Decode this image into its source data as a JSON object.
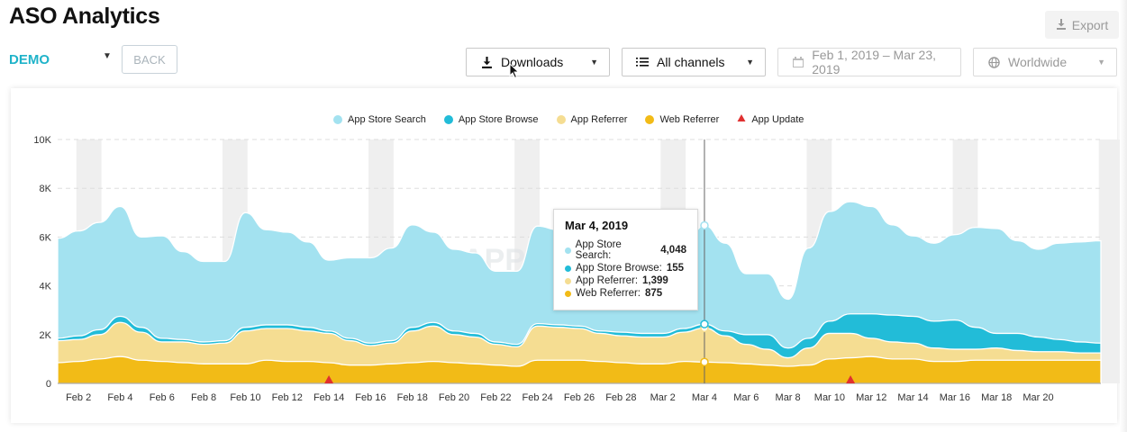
{
  "header": {
    "title": "ASO Analytics",
    "export_label": "Export",
    "workspace": "DEMO",
    "back_label": "BACK"
  },
  "filters": {
    "metric": "Downloads",
    "channels": "All channels",
    "date_range": "Feb 1, 2019 – Mar 23, 2019",
    "region": "Worldwide"
  },
  "legend": [
    {
      "label": "App Store Search",
      "color": "#a3e2f0",
      "shape": "circle"
    },
    {
      "label": "App Store Browse",
      "color": "#22bcd8",
      "shape": "circle"
    },
    {
      "label": "App Referrer",
      "color": "#f5dd92",
      "shape": "circle"
    },
    {
      "label": "Web Referrer",
      "color": "#f2bb17",
      "shape": "circle"
    },
    {
      "label": "App Update",
      "color": "#e03030",
      "shape": "triangle"
    }
  ],
  "tooltip": {
    "date": "Mar 4, 2019",
    "rows": [
      {
        "label": "App Store Search: ",
        "value": "4,048",
        "color": "#a3e2f0"
      },
      {
        "label": "App Store Browse: ",
        "value": "155",
        "color": "#22bcd8"
      },
      {
        "label": "App Referrer: ",
        "value": "1,399",
        "color": "#f5dd92"
      },
      {
        "label": "Web Referrer: ",
        "value": "875",
        "color": "#f2bb17"
      }
    ]
  },
  "chart_data": {
    "type": "area",
    "stacked": true,
    "ylim": [
      0,
      10000
    ],
    "yticks": [
      0,
      2000,
      4000,
      6000,
      8000,
      10000
    ],
    "ytick_labels": [
      "0",
      "2K",
      "4K",
      "6K",
      "8K",
      "10K"
    ],
    "xtick_labels": [
      "Feb 2",
      "Feb 4",
      "Feb 6",
      "Feb 8",
      "Feb 10",
      "Feb 12",
      "Feb 14",
      "Feb 16",
      "Feb 18",
      "Feb 20",
      "Feb 22",
      "Feb 24",
      "Feb 26",
      "Feb 28",
      "Mar 2",
      "Mar 4",
      "Mar 6",
      "Mar 8",
      "Mar 10",
      "Mar 12",
      "Mar 14",
      "Mar 16",
      "Mar 18",
      "Mar 20"
    ],
    "x": [
      "Feb 1",
      "Feb 2",
      "Feb 3",
      "Feb 4",
      "Feb 5",
      "Feb 6",
      "Feb 7",
      "Feb 8",
      "Feb 9",
      "Feb 10",
      "Feb 11",
      "Feb 12",
      "Feb 13",
      "Feb 14",
      "Feb 15",
      "Feb 16",
      "Feb 17",
      "Feb 18",
      "Feb 19",
      "Feb 20",
      "Feb 21",
      "Feb 22",
      "Feb 23",
      "Feb 24",
      "Feb 25",
      "Feb 26",
      "Feb 27",
      "Feb 28",
      "Mar 1",
      "Mar 2",
      "Mar 3",
      "Mar 4",
      "Mar 5",
      "Mar 6",
      "Mar 7",
      "Mar 8",
      "Mar 9",
      "Mar 10",
      "Mar 11",
      "Mar 12",
      "Mar 13",
      "Mar 14",
      "Mar 15",
      "Mar 16",
      "Mar 17",
      "Mar 18",
      "Mar 19",
      "Mar 20",
      "Mar 21",
      "Mar 22",
      "Mar 23"
    ],
    "series": [
      {
        "name": "Web Referrer",
        "color": "#f2bb17",
        "values": [
          850,
          900,
          1000,
          1100,
          950,
          900,
          850,
          800,
          800,
          800,
          950,
          900,
          900,
          850,
          750,
          750,
          800,
          850,
          900,
          850,
          800,
          750,
          700,
          950,
          950,
          950,
          900,
          850,
          800,
          800,
          900,
          875,
          850,
          800,
          750,
          700,
          750,
          1000,
          1050,
          1100,
          1000,
          1000,
          900,
          900,
          950,
          950,
          950,
          950,
          950,
          950,
          950
        ]
      },
      {
        "name": "App Referrer",
        "color": "#f5dd92",
        "values": [
          900,
          900,
          1000,
          1400,
          1150,
          800,
          850,
          800,
          850,
          1350,
          1300,
          1350,
          1250,
          1200,
          1000,
          800,
          850,
          1300,
          1450,
          1150,
          1100,
          850,
          800,
          1400,
          1350,
          1300,
          1150,
          1100,
          1100,
          1100,
          1200,
          1399,
          1100,
          800,
          650,
          350,
          700,
          1050,
          1000,
          750,
          700,
          650,
          550,
          500,
          450,
          500,
          400,
          350,
          350,
          300,
          300
        ]
      },
      {
        "name": "App Store Browse",
        "color": "#22bcd8",
        "values": [
          100,
          150,
          200,
          250,
          200,
          150,
          100,
          100,
          100,
          150,
          150,
          150,
          150,
          100,
          100,
          100,
          100,
          150,
          150,
          150,
          150,
          100,
          100,
          100,
          100,
          100,
          100,
          150,
          150,
          150,
          150,
          155,
          200,
          400,
          600,
          400,
          400,
          500,
          800,
          1000,
          1100,
          1100,
          1100,
          1200,
          900,
          600,
          700,
          600,
          500,
          450,
          400
        ]
      },
      {
        "name": "App Store Search",
        "color": "#a3e2f0",
        "values": [
          4100,
          4300,
          4400,
          4500,
          3700,
          4200,
          3600,
          3300,
          3250,
          4700,
          3900,
          3800,
          3500,
          2900,
          3300,
          3500,
          3800,
          4200,
          3700,
          3350,
          3300,
          2900,
          3000,
          4000,
          3900,
          3700,
          3500,
          3400,
          3450,
          3400,
          3300,
          4048,
          3600,
          2500,
          2500,
          2000,
          3700,
          4500,
          4600,
          4400,
          3700,
          3300,
          3200,
          3500,
          4100,
          4300,
          3800,
          3600,
          3950,
          4100,
          4200
        ]
      }
    ],
    "events": [
      {
        "type": "App Update",
        "x": "Feb 14"
      },
      {
        "type": "App Update",
        "x": "Mar 11"
      }
    ],
    "hover_x": "Mar 4",
    "watermark": "APP",
    "legend_position": "top-center",
    "grid": true
  }
}
